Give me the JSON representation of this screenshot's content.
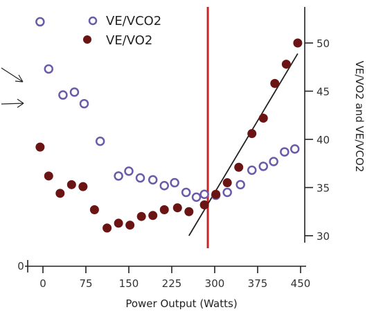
{
  "chart_data": {
    "type": "scatter",
    "xlabel": "Power Output (Watts)",
    "ylabel": "VE/VO2 and VE/VCO2",
    "x_ticks": [
      0,
      75,
      150,
      225,
      300,
      375,
      450
    ],
    "x_tick_labels": [
      "0",
      "75",
      "150",
      "225",
      "300",
      "375",
      "450"
    ],
    "y_ticks": [
      30,
      35,
      40,
      45,
      50
    ],
    "y_tick_labels": [
      "30",
      "35",
      "40",
      "45",
      "50"
    ],
    "lower_axis_label": "0",
    "xlim": [
      -10,
      460
    ],
    "ylim": [
      28.5,
      52
    ],
    "series": [
      {
        "name": "VE/VCO2",
        "marker": "open-circle",
        "color": "#6a5aa8",
        "points": [
          [
            -5,
            52.2
          ],
          [
            10,
            47.3
          ],
          [
            35,
            44.6
          ],
          [
            55,
            44.9
          ],
          [
            72,
            43.7
          ],
          [
            100,
            39.8
          ],
          [
            132,
            36.2
          ],
          [
            150,
            36.7
          ],
          [
            170,
            36
          ],
          [
            192,
            35.8
          ],
          [
            212,
            35.2
          ],
          [
            230,
            35.5
          ],
          [
            250,
            34.5
          ],
          [
            268,
            34
          ],
          [
            282,
            34.3
          ],
          [
            302,
            34.2
          ],
          [
            322,
            34.5
          ],
          [
            345,
            35.3
          ],
          [
            365,
            36.8
          ],
          [
            385,
            37.2
          ],
          [
            403,
            37.7
          ],
          [
            422,
            38.7
          ],
          [
            440,
            39
          ]
        ]
      },
      {
        "name": "VE/VO2",
        "marker": "filled-circle",
        "color": "#6b1414",
        "points": [
          [
            -5,
            39.2
          ],
          [
            10,
            36.2
          ],
          [
            30,
            34.4
          ],
          [
            50,
            35.3
          ],
          [
            70,
            35.1
          ],
          [
            90,
            32.7
          ],
          [
            112,
            30.8
          ],
          [
            132,
            31.3
          ],
          [
            152,
            31.1
          ],
          [
            172,
            32
          ],
          [
            192,
            32.1
          ],
          [
            212,
            32.7
          ],
          [
            235,
            32.9
          ],
          [
            255,
            32.5
          ],
          [
            282,
            33.2
          ],
          [
            302,
            34.3
          ],
          [
            322,
            35.5
          ],
          [
            342,
            37.1
          ],
          [
            365,
            40.6
          ],
          [
            385,
            42.2
          ],
          [
            405,
            45.8
          ],
          [
            425,
            47.8
          ],
          [
            445,
            50
          ]
        ]
      }
    ],
    "trend_line": {
      "x": [
        255,
        445
      ],
      "y": [
        30,
        48.9
      ],
      "color": "#222222"
    },
    "threshold_line": {
      "x": 288,
      "color": "#cc2222"
    }
  }
}
